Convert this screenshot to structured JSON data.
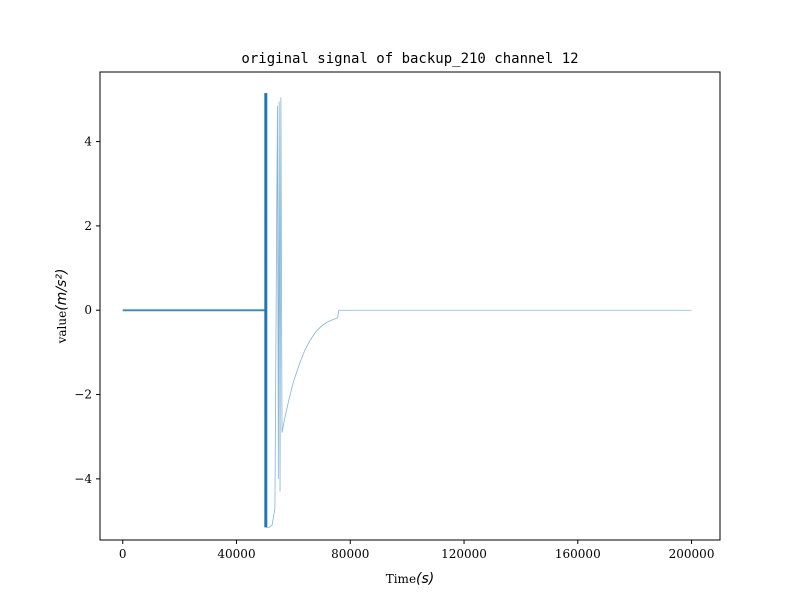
{
  "chart_data": {
    "type": "line",
    "title": "original signal of backup_210 channel 12",
    "xlabel": "Time",
    "xlabel_unit": "(s)",
    "ylabel": "value",
    "ylabel_unit": "(m/s²)",
    "xlim": [
      -8000,
      210000
    ],
    "ylim": [
      -5.45,
      5.65
    ],
    "xticks": [
      0,
      40000,
      80000,
      120000,
      160000,
      200000
    ],
    "xtick_labels": [
      "0",
      "40000",
      "80000",
      "120000",
      "160000",
      "200000"
    ],
    "yticks": [
      -4,
      -2,
      0,
      2,
      4
    ],
    "ytick_labels": [
      "−4",
      "−2",
      "0",
      "2",
      "4"
    ],
    "grid": false,
    "line_color": "#1f77b4",
    "series": [
      {
        "noise_band": {
          "x_start": 0,
          "x_end": 50000,
          "amplitude": 0.03
        },
        "saturation_spike": {
          "x": 50300,
          "min": -5.15,
          "max": 5.15
        },
        "points": [
          [
            50500,
            -5.15
          ],
          [
            51500,
            -5.15
          ],
          [
            52500,
            -5.1
          ],
          [
            53500,
            -4.7
          ],
          [
            54200,
            3.0
          ],
          [
            54400,
            4.85
          ],
          [
            54700,
            -4.0
          ],
          [
            55000,
            4.95
          ],
          [
            55300,
            -4.3
          ],
          [
            55600,
            5.05
          ],
          [
            56000,
            -2.9
          ],
          [
            57000,
            -2.55
          ],
          [
            58500,
            -2.1
          ],
          [
            60000,
            -1.7
          ],
          [
            62000,
            -1.3
          ],
          [
            64000,
            -0.95
          ],
          [
            66000,
            -0.7
          ],
          [
            68000,
            -0.5
          ],
          [
            70000,
            -0.37
          ],
          [
            72000,
            -0.28
          ],
          [
            74000,
            -0.22
          ],
          [
            75500,
            -0.18
          ],
          [
            76000,
            0.0
          ],
          [
            200000,
            0.0
          ]
        ]
      }
    ]
  }
}
